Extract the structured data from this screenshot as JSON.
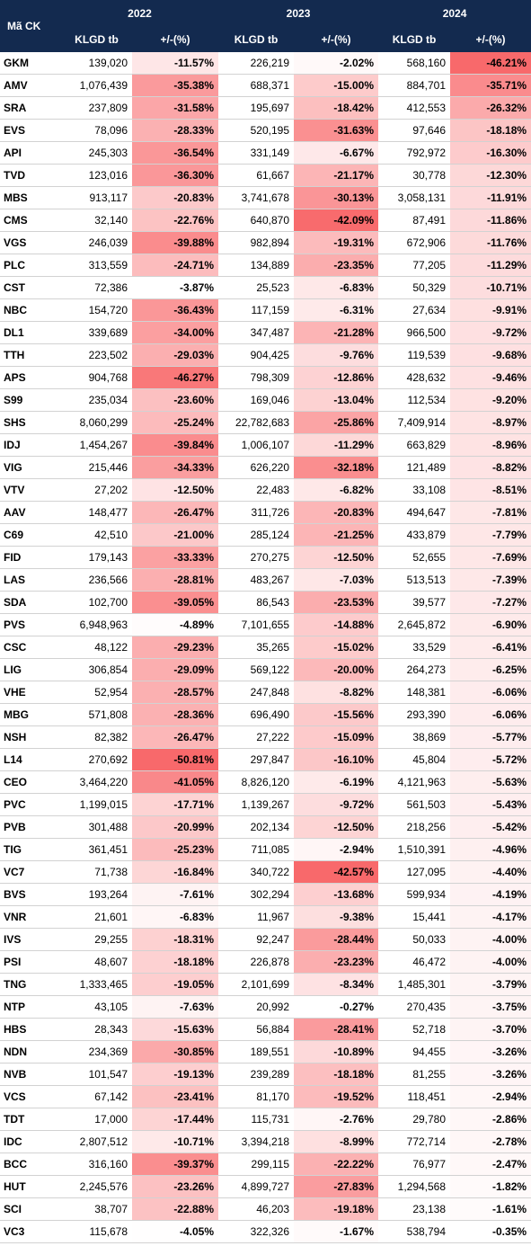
{
  "header": {
    "code_label": "Mã CK",
    "years": [
      "2022",
      "2023",
      "2024"
    ],
    "vol_label": "KLGD tb",
    "chg_label": "+/-(%)"
  },
  "rows": [
    {
      "code": "GKM",
      "v2022": "139,020",
      "c2022": "-11.57%",
      "v2023": "226,219",
      "c2023": "-2.02%",
      "v2024": "568,160",
      "c2024": "-46.21%"
    },
    {
      "code": "AMV",
      "v2022": "1,076,439",
      "c2022": "-35.38%",
      "v2023": "688,371",
      "c2023": "-15.00%",
      "v2024": "884,701",
      "c2024": "-35.71%"
    },
    {
      "code": "SRA",
      "v2022": "237,809",
      "c2022": "-31.58%",
      "v2023": "195,697",
      "c2023": "-18.42%",
      "v2024": "412,553",
      "c2024": "-26.32%"
    },
    {
      "code": "EVS",
      "v2022": "78,096",
      "c2022": "-28.33%",
      "v2023": "520,195",
      "c2023": "-31.63%",
      "v2024": "97,646",
      "c2024": "-18.18%"
    },
    {
      "code": "API",
      "v2022": "245,303",
      "c2022": "-36.54%",
      "v2023": "331,149",
      "c2023": "-6.67%",
      "v2024": "792,972",
      "c2024": "-16.30%"
    },
    {
      "code": "TVD",
      "v2022": "123,016",
      "c2022": "-36.30%",
      "v2023": "61,667",
      "c2023": "-21.17%",
      "v2024": "30,778",
      "c2024": "-12.30%"
    },
    {
      "code": "MBS",
      "v2022": "913,117",
      "c2022": "-20.83%",
      "v2023": "3,741,678",
      "c2023": "-30.13%",
      "v2024": "3,058,131",
      "c2024": "-11.91%"
    },
    {
      "code": "CMS",
      "v2022": "32,140",
      "c2022": "-22.76%",
      "v2023": "640,870",
      "c2023": "-42.09%",
      "v2024": "87,491",
      "c2024": "-11.86%"
    },
    {
      "code": "VGS",
      "v2022": "246,039",
      "c2022": "-39.88%",
      "v2023": "982,894",
      "c2023": "-19.31%",
      "v2024": "672,906",
      "c2024": "-11.76%"
    },
    {
      "code": "PLC",
      "v2022": "313,559",
      "c2022": "-24.71%",
      "v2023": "134,889",
      "c2023": "-23.35%",
      "v2024": "77,205",
      "c2024": "-11.29%"
    },
    {
      "code": "CST",
      "v2022": "72,386",
      "c2022": "-3.87%",
      "v2023": "25,523",
      "c2023": "-6.83%",
      "v2024": "50,329",
      "c2024": "-10.71%"
    },
    {
      "code": "NBC",
      "v2022": "154,720",
      "c2022": "-36.43%",
      "v2023": "117,159",
      "c2023": "-6.31%",
      "v2024": "27,634",
      "c2024": "-9.91%"
    },
    {
      "code": "DL1",
      "v2022": "339,689",
      "c2022": "-34.00%",
      "v2023": "347,487",
      "c2023": "-21.28%",
      "v2024": "966,500",
      "c2024": "-9.72%"
    },
    {
      "code": "TTH",
      "v2022": "223,502",
      "c2022": "-29.03%",
      "v2023": "904,425",
      "c2023": "-9.76%",
      "v2024": "119,539",
      "c2024": "-9.68%"
    },
    {
      "code": "APS",
      "v2022": "904,768",
      "c2022": "-46.27%",
      "v2023": "798,309",
      "c2023": "-12.86%",
      "v2024": "428,632",
      "c2024": "-9.46%"
    },
    {
      "code": "S99",
      "v2022": "235,034",
      "c2022": "-23.60%",
      "v2023": "169,046",
      "c2023": "-13.04%",
      "v2024": "112,534",
      "c2024": "-9.20%"
    },
    {
      "code": "SHS",
      "v2022": "8,060,299",
      "c2022": "-25.24%",
      "v2023": "22,782,683",
      "c2023": "-25.86%",
      "v2024": "7,409,914",
      "c2024": "-8.97%"
    },
    {
      "code": "IDJ",
      "v2022": "1,454,267",
      "c2022": "-39.84%",
      "v2023": "1,006,107",
      "c2023": "-11.29%",
      "v2024": "663,829",
      "c2024": "-8.96%"
    },
    {
      "code": "VIG",
      "v2022": "215,446",
      "c2022": "-34.33%",
      "v2023": "626,220",
      "c2023": "-32.18%",
      "v2024": "121,489",
      "c2024": "-8.82%"
    },
    {
      "code": "VTV",
      "v2022": "27,202",
      "c2022": "-12.50%",
      "v2023": "22,483",
      "c2023": "-6.82%",
      "v2024": "33,108",
      "c2024": "-8.51%"
    },
    {
      "code": "AAV",
      "v2022": "148,477",
      "c2022": "-26.47%",
      "v2023": "311,726",
      "c2023": "-20.83%",
      "v2024": "494,647",
      "c2024": "-7.81%"
    },
    {
      "code": "C69",
      "v2022": "42,510",
      "c2022": "-21.00%",
      "v2023": "285,124",
      "c2023": "-21.25%",
      "v2024": "433,879",
      "c2024": "-7.79%"
    },
    {
      "code": "FID",
      "v2022": "179,143",
      "c2022": "-33.33%",
      "v2023": "270,275",
      "c2023": "-12.50%",
      "v2024": "52,655",
      "c2024": "-7.69%"
    },
    {
      "code": "LAS",
      "v2022": "236,566",
      "c2022": "-28.81%",
      "v2023": "483,267",
      "c2023": "-7.03%",
      "v2024": "513,513",
      "c2024": "-7.39%"
    },
    {
      "code": "SDA",
      "v2022": "102,700",
      "c2022": "-39.05%",
      "v2023": "86,543",
      "c2023": "-23.53%",
      "v2024": "39,577",
      "c2024": "-7.27%"
    },
    {
      "code": "PVS",
      "v2022": "6,948,963",
      "c2022": "-4.89%",
      "v2023": "7,101,655",
      "c2023": "-14.88%",
      "v2024": "2,645,872",
      "c2024": "-6.90%"
    },
    {
      "code": "CSC",
      "v2022": "48,122",
      "c2022": "-29.23%",
      "v2023": "35,265",
      "c2023": "-15.02%",
      "v2024": "33,529",
      "c2024": "-6.41%"
    },
    {
      "code": "LIG",
      "v2022": "306,854",
      "c2022": "-29.09%",
      "v2023": "569,122",
      "c2023": "-20.00%",
      "v2024": "264,273",
      "c2024": "-6.25%"
    },
    {
      "code": "VHE",
      "v2022": "52,954",
      "c2022": "-28.57%",
      "v2023": "247,848",
      "c2023": "-8.82%",
      "v2024": "148,381",
      "c2024": "-6.06%"
    },
    {
      "code": "MBG",
      "v2022": "571,808",
      "c2022": "-28.36%",
      "v2023": "696,490",
      "c2023": "-15.56%",
      "v2024": "293,390",
      "c2024": "-6.06%"
    },
    {
      "code": "NSH",
      "v2022": "82,382",
      "c2022": "-26.47%",
      "v2023": "27,222",
      "c2023": "-15.09%",
      "v2024": "38,869",
      "c2024": "-5.77%"
    },
    {
      "code": "L14",
      "v2022": "270,692",
      "c2022": "-50.81%",
      "v2023": "297,847",
      "c2023": "-16.10%",
      "v2024": "45,804",
      "c2024": "-5.72%"
    },
    {
      "code": "CEO",
      "v2022": "3,464,220",
      "c2022": "-41.05%",
      "v2023": "8,826,120",
      "c2023": "-6.19%",
      "v2024": "4,121,963",
      "c2024": "-5.63%"
    },
    {
      "code": "PVC",
      "v2022": "1,199,015",
      "c2022": "-17.71%",
      "v2023": "1,139,267",
      "c2023": "-9.72%",
      "v2024": "561,503",
      "c2024": "-5.43%"
    },
    {
      "code": "PVB",
      "v2022": "301,488",
      "c2022": "-20.99%",
      "v2023": "202,134",
      "c2023": "-12.50%",
      "v2024": "218,256",
      "c2024": "-5.42%"
    },
    {
      "code": "TIG",
      "v2022": "361,451",
      "c2022": "-25.23%",
      "v2023": "711,085",
      "c2023": "-2.94%",
      "v2024": "1,510,391",
      "c2024": "-4.96%"
    },
    {
      "code": "VC7",
      "v2022": "71,738",
      "c2022": "-16.84%",
      "v2023": "340,722",
      "c2023": "-42.57%",
      "v2024": "127,095",
      "c2024": "-4.40%"
    },
    {
      "code": "BVS",
      "v2022": "193,264",
      "c2022": "-7.61%",
      "v2023": "302,294",
      "c2023": "-13.68%",
      "v2024": "599,934",
      "c2024": "-4.19%"
    },
    {
      "code": "VNR",
      "v2022": "21,601",
      "c2022": "-6.83%",
      "v2023": "11,967",
      "c2023": "-9.38%",
      "v2024": "15,441",
      "c2024": "-4.17%"
    },
    {
      "code": "IVS",
      "v2022": "29,255",
      "c2022": "-18.31%",
      "v2023": "92,247",
      "c2023": "-28.44%",
      "v2024": "50,033",
      "c2024": "-4.00%"
    },
    {
      "code": "PSI",
      "v2022": "48,607",
      "c2022": "-18.18%",
      "v2023": "226,878",
      "c2023": "-23.23%",
      "v2024": "46,472",
      "c2024": "-4.00%"
    },
    {
      "code": "TNG",
      "v2022": "1,333,465",
      "c2022": "-19.05%",
      "v2023": "2,101,699",
      "c2023": "-8.34%",
      "v2024": "1,485,301",
      "c2024": "-3.79%"
    },
    {
      "code": "NTP",
      "v2022": "43,105",
      "c2022": "-7.63%",
      "v2023": "20,992",
      "c2023": "-0.27%",
      "v2024": "270,435",
      "c2024": "-3.75%"
    },
    {
      "code": "HBS",
      "v2022": "28,343",
      "c2022": "-15.63%",
      "v2023": "56,884",
      "c2023": "-28.41%",
      "v2024": "52,718",
      "c2024": "-3.70%"
    },
    {
      "code": "NDN",
      "v2022": "234,369",
      "c2022": "-30.85%",
      "v2023": "189,551",
      "c2023": "-10.89%",
      "v2024": "94,455",
      "c2024": "-3.26%"
    },
    {
      "code": "NVB",
      "v2022": "101,547",
      "c2022": "-19.13%",
      "v2023": "239,289",
      "c2023": "-18.18%",
      "v2024": "81,255",
      "c2024": "-3.26%"
    },
    {
      "code": "VCS",
      "v2022": "67,142",
      "c2022": "-23.41%",
      "v2023": "81,170",
      "c2023": "-19.52%",
      "v2024": "118,451",
      "c2024": "-2.94%"
    },
    {
      "code": "TDT",
      "v2022": "17,000",
      "c2022": "-17.44%",
      "v2023": "115,731",
      "c2023": "-2.76%",
      "v2024": "29,780",
      "c2024": "-2.86%"
    },
    {
      "code": "IDC",
      "v2022": "2,807,512",
      "c2022": "-10.71%",
      "v2023": "3,394,218",
      "c2023": "-8.99%",
      "v2024": "772,714",
      "c2024": "-2.78%"
    },
    {
      "code": "BCC",
      "v2022": "316,160",
      "c2022": "-39.37%",
      "v2023": "299,115",
      "c2023": "-22.22%",
      "v2024": "76,977",
      "c2024": "-2.47%"
    },
    {
      "code": "HUT",
      "v2022": "2,245,576",
      "c2022": "-23.26%",
      "v2023": "4,899,727",
      "c2023": "-27.83%",
      "v2024": "1,294,568",
      "c2024": "-1.82%"
    },
    {
      "code": "SCI",
      "v2022": "38,707",
      "c2022": "-22.88%",
      "v2023": "46,203",
      "c2023": "-19.18%",
      "v2024": "23,138",
      "c2024": "-1.61%"
    },
    {
      "code": "VC3",
      "v2022": "115,678",
      "c2022": "-4.05%",
      "v2023": "322,326",
      "c2023": "-1.67%",
      "v2024": "538,794",
      "c2024": "-0.35%"
    }
  ],
  "heatmap_colors": {
    "low": "#ffffff",
    "high": "#f8696b"
  }
}
